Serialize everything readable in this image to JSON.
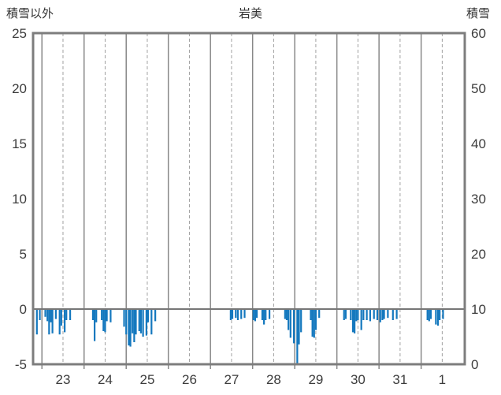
{
  "page": {
    "title_left": "積雪以外",
    "title_center": "岩美",
    "title_right": "積雪"
  },
  "chart_data": {
    "type": "bar",
    "title": "岩美",
    "left_axis": {
      "label": "積雪以外",
      "ticks": [
        25,
        20,
        15,
        10,
        5,
        0,
        -5
      ],
      "range": [
        -5,
        25
      ]
    },
    "right_axis": {
      "label": "積雪",
      "ticks": [
        60,
        50,
        40,
        30,
        20,
        10,
        0
      ],
      "range": [
        0,
        60
      ]
    },
    "x_axis": {
      "tick_labels": [
        "23",
        "24",
        "25",
        "26",
        "27",
        "28",
        "29",
        "30",
        "31",
        "1"
      ],
      "label_positions": [
        23.5,
        24.5,
        25.5,
        26.5,
        27.5,
        28.5,
        29.5,
        30.5,
        31.5,
        32.5
      ],
      "solid_gridlines": [
        23,
        24,
        25,
        26,
        27,
        28,
        29,
        30,
        31,
        32
      ],
      "dashed_gridlines": [
        23.5,
        24.5,
        25.5,
        26.5,
        27.5,
        28.5,
        29.5,
        30.5,
        31.5,
        32.5
      ],
      "range": [
        22.79,
        33.035
      ],
      "note": "x in day-of-month units, 32 and 32.5 correspond to day 1 of next month"
    },
    "grid": true,
    "legend": false,
    "bar_direction": "downward_from_zero_on_left_axis",
    "bars": [
      [
        22.88,
        2.3
      ],
      [
        22.95,
        1.0
      ],
      [
        23.08,
        0.7
      ],
      [
        23.13,
        1.1
      ],
      [
        23.17,
        2.3
      ],
      [
        23.21,
        1.2
      ],
      [
        23.25,
        2.2
      ],
      [
        23.33,
        0.9
      ],
      [
        23.42,
        2.3
      ],
      [
        23.46,
        1.5
      ],
      [
        23.54,
        2.1
      ],
      [
        23.58,
        1.0
      ],
      [
        23.67,
        1.0
      ],
      [
        24.21,
        1.0
      ],
      [
        24.25,
        2.9
      ],
      [
        24.29,
        1.2
      ],
      [
        24.42,
        1.0
      ],
      [
        24.46,
        2.0
      ],
      [
        24.5,
        2.1
      ],
      [
        24.54,
        1.1
      ],
      [
        24.63,
        1.2
      ],
      [
        24.95,
        1.6
      ],
      [
        25.0,
        2.3
      ],
      [
        25.06,
        3.3
      ],
      [
        25.1,
        3.4
      ],
      [
        25.15,
        2.2
      ],
      [
        25.19,
        3.0
      ],
      [
        25.23,
        2.3
      ],
      [
        25.31,
        2.0
      ],
      [
        25.35,
        2.2
      ],
      [
        25.4,
        2.5
      ],
      [
        25.48,
        2.4
      ],
      [
        25.52,
        1.2
      ],
      [
        25.6,
        2.3
      ],
      [
        25.69,
        1.1
      ],
      [
        27.48,
        1.0
      ],
      [
        27.52,
        0.9
      ],
      [
        27.6,
        0.8
      ],
      [
        27.65,
        1.0
      ],
      [
        27.73,
        0.9
      ],
      [
        27.81,
        0.8
      ],
      [
        28.02,
        1.0
      ],
      [
        28.06,
        1.1
      ],
      [
        28.1,
        0.8
      ],
      [
        28.23,
        1.0
      ],
      [
        28.27,
        1.4
      ],
      [
        28.31,
        1.0
      ],
      [
        28.4,
        0.9
      ],
      [
        28.77,
        0.9
      ],
      [
        28.81,
        1.0
      ],
      [
        28.85,
        1.9
      ],
      [
        28.9,
        2.6
      ],
      [
        28.98,
        3.1
      ],
      [
        29.06,
        5.0
      ],
      [
        29.1,
        3.2
      ],
      [
        29.15,
        2.1
      ],
      [
        29.38,
        1.0
      ],
      [
        29.42,
        2.5
      ],
      [
        29.46,
        2.6
      ],
      [
        29.5,
        1.9
      ],
      [
        29.58,
        0.8
      ],
      [
        30.17,
        1.0
      ],
      [
        30.21,
        0.9
      ],
      [
        30.33,
        1.0
      ],
      [
        30.38,
        2.1
      ],
      [
        30.42,
        2.2
      ],
      [
        30.46,
        1.1
      ],
      [
        30.5,
        1.0
      ],
      [
        30.58,
        1.9
      ],
      [
        30.63,
        1.0
      ],
      [
        30.71,
        1.0
      ],
      [
        30.79,
        1.1
      ],
      [
        30.88,
        0.9
      ],
      [
        30.96,
        1.0
      ],
      [
        31.03,
        1.2
      ],
      [
        31.08,
        1.0
      ],
      [
        31.12,
        0.9
      ],
      [
        31.21,
        0.8
      ],
      [
        31.33,
        1.0
      ],
      [
        31.42,
        0.9
      ],
      [
        32.15,
        1.0
      ],
      [
        32.19,
        1.1
      ],
      [
        32.23,
        0.9
      ],
      [
        32.35,
        1.4
      ],
      [
        32.4,
        1.5
      ],
      [
        32.44,
        1.0
      ],
      [
        32.52,
        0.9
      ]
    ],
    "colors": {
      "bar": "#1478be",
      "frame": "#7d7d7d",
      "grid_solid": "#888888",
      "grid_dashed": "#a0a0a0",
      "zero_line": "#777777",
      "text": "#3c3c3c"
    }
  }
}
